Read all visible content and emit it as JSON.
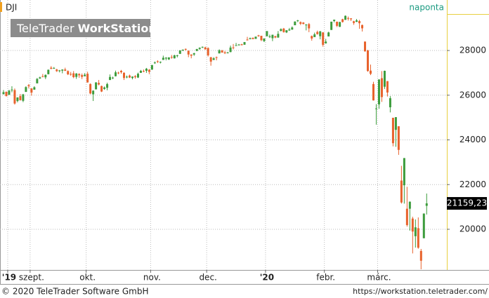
{
  "chart_data": {
    "type": "candlestick",
    "symbol": "DJI",
    "interval": "naponta",
    "watermark": {
      "light": "TeleTrader",
      "bold": "WorkStation"
    },
    "footer_left": "© 2020 TeleTrader Software GmbH",
    "footer_right": "https://workstation.teletrader.com/",
    "up_color": "#3c9c3c",
    "down_color": "#e8622c",
    "grid": true,
    "ylim": [
      18180,
      30260
    ],
    "yticks": [
      20000,
      22000,
      24000,
      26000,
      28000
    ],
    "xlim": [
      -1.25,
      158.2
    ],
    "xticks": [
      {
        "value": 2,
        "label": "'19"
      },
      {
        "value": 10,
        "label": "szept."
      },
      {
        "value": 30,
        "label": "okt."
      },
      {
        "value": 53,
        "label": "nov."
      },
      {
        "value": 73,
        "label": "dec."
      },
      {
        "value": 94,
        "label": "'20"
      },
      {
        "value": 115,
        "label": "febr."
      },
      {
        "value": 134,
        "label": "márc."
      }
    ],
    "last_price": {
      "value": 21159.23,
      "label": "21159,23"
    },
    "candles": [
      [
        26050,
        26230,
        26030,
        26136
      ],
      [
        26150,
        26170,
        25940,
        25962
      ],
      [
        26020,
        26240,
        26010,
        26202
      ],
      [
        26230,
        26400,
        26130,
        26252
      ],
      [
        26230,
        26300,
        25580,
        25628
      ],
      [
        25740,
        25910,
        25680,
        25898
      ],
      [
        25960,
        26050,
        25760,
        25777
      ],
      [
        25750,
        26060,
        25690,
        26036
      ],
      [
        26150,
        26400,
        26140,
        26362
      ],
      [
        26450,
        26500,
        26300,
        26403
      ],
      [
        26300,
        26320,
        25980,
        26118
      ],
      [
        26250,
        26400,
        26240,
        26355
      ],
      [
        26530,
        26770,
        26530,
        26728
      ],
      [
        26750,
        26830,
        26730,
        26797
      ],
      [
        26850,
        26950,
        26800,
        26835
      ],
      [
        26800,
        26930,
        26720,
        26909
      ],
      [
        26940,
        27150,
        26930,
        27137
      ],
      [
        27230,
        27300,
        27160,
        27182
      ],
      [
        27200,
        27260,
        27180,
        27220
      ],
      [
        27150,
        27180,
        27040,
        27076
      ],
      [
        27090,
        27130,
        27020,
        27111
      ],
      [
        27100,
        27160,
        26980,
        27147
      ],
      [
        27150,
        27230,
        27080,
        27094
      ],
      [
        27080,
        27110,
        26900,
        26935
      ],
      [
        26950,
        27040,
        26870,
        26949
      ],
      [
        26980,
        27080,
        26760,
        26808
      ],
      [
        26820,
        26990,
        26730,
        26970
      ],
      [
        26950,
        26980,
        26780,
        26891
      ],
      [
        26900,
        26970,
        26720,
        26820
      ],
      [
        26850,
        26990,
        26840,
        26917
      ],
      [
        26960,
        27050,
        26560,
        26573
      ],
      [
        26500,
        26530,
        26040,
        26078
      ],
      [
        26040,
        26220,
        25740,
        26201
      ],
      [
        26260,
        26580,
        26260,
        26573
      ],
      [
        26550,
        26680,
        26440,
        26478
      ],
      [
        26410,
        26430,
        26140,
        26164
      ],
      [
        26280,
        26390,
        26240,
        26346
      ],
      [
        26330,
        26560,
        26220,
        26497
      ],
      [
        26680,
        26930,
        26680,
        26816
      ],
      [
        26760,
        26830,
        26720,
        26787
      ],
      [
        26850,
        27100,
        26840,
        27024
      ],
      [
        27010,
        27050,
        26940,
        27001
      ],
      [
        27090,
        27130,
        26960,
        27026
      ],
      [
        27000,
        27030,
        26680,
        26770
      ],
      [
        26800,
        26880,
        26760,
        26827
      ],
      [
        26880,
        26920,
        26770,
        26788
      ],
      [
        26770,
        26840,
        26710,
        26834
      ],
      [
        26850,
        26900,
        26740,
        26806
      ],
      [
        26790,
        27010,
        26770,
        26958
      ],
      [
        27000,
        27130,
        27000,
        27091
      ],
      [
        27080,
        27150,
        27030,
        27071
      ],
      [
        27090,
        27220,
        27000,
        27186
      ],
      [
        27140,
        27170,
        26940,
        27046
      ],
      [
        27150,
        27360,
        27130,
        27347
      ],
      [
        27450,
        27510,
        27400,
        27462
      ],
      [
        27520,
        27560,
        27440,
        27492
      ],
      [
        27460,
        27510,
        27420,
        27492
      ],
      [
        27580,
        27770,
        27580,
        27675
      ],
      [
        27640,
        27700,
        27560,
        27681
      ],
      [
        27600,
        27700,
        27580,
        27691
      ],
      [
        27710,
        27800,
        27630,
        27691
      ],
      [
        27650,
        27810,
        27640,
        27784
      ],
      [
        27760,
        27810,
        27690,
        27782
      ],
      [
        27850,
        28010,
        27850,
        28005
      ],
      [
        28010,
        28050,
        27970,
        28036
      ],
      [
        28070,
        28090,
        27990,
        28036
      ],
      [
        27990,
        28000,
        27700,
        27821
      ],
      [
        27820,
        27830,
        27650,
        27767
      ],
      [
        27820,
        27900,
        27760,
        27876
      ],
      [
        27980,
        28070,
        27970,
        28066
      ],
      [
        28070,
        28140,
        28030,
        28122
      ],
      [
        28140,
        28180,
        28110,
        28164
      ],
      [
        28140,
        28170,
        28040,
        28051
      ],
      [
        28110,
        28140,
        27730,
        27783
      ],
      [
        27700,
        27710,
        27320,
        27503
      ],
      [
        27580,
        27700,
        27570,
        27650
      ],
      [
        27700,
        27730,
        27560,
        27677
      ],
      [
        27870,
        28050,
        27870,
        28015
      ],
      [
        28000,
        28030,
        27900,
        27910
      ],
      [
        27920,
        27980,
        27840,
        27881
      ],
      [
        27890,
        27940,
        27870,
        27911
      ],
      [
        27930,
        28220,
        27920,
        28132
      ],
      [
        28140,
        28290,
        28050,
        28135
      ],
      [
        28230,
        28340,
        28220,
        28235
      ],
      [
        28250,
        28290,
        28220,
        28267
      ],
      [
        28280,
        28300,
        28230,
        28239
      ],
      [
        28260,
        28380,
        28250,
        28377
      ],
      [
        28490,
        28610,
        28450,
        28455
      ],
      [
        28510,
        28580,
        28500,
        28551
      ],
      [
        28570,
        28580,
        28500,
        28515
      ],
      [
        28520,
        28620,
        28520,
        28621
      ],
      [
        28680,
        28700,
        28610,
        28645
      ],
      [
        28660,
        28660,
        28420,
        28462
      ],
      [
        28420,
        28540,
        28380,
        28538
      ],
      [
        28640,
        28870,
        28630,
        28868
      ],
      [
        28630,
        28710,
        28560,
        28634
      ],
      [
        28550,
        28710,
        28420,
        28703
      ],
      [
        28640,
        28660,
        28550,
        28583
      ],
      [
        28580,
        28870,
        28570,
        28745
      ],
      [
        28880,
        28990,
        28850,
        28957
      ],
      [
        28980,
        29010,
        28800,
        28824
      ],
      [
        28810,
        28910,
        28780,
        28907
      ],
      [
        28900,
        29010,
        28880,
        28940
      ],
      [
        28940,
        29080,
        28920,
        29030
      ],
      [
        29130,
        29300,
        29130,
        29297
      ],
      [
        29320,
        29370,
        29270,
        29348
      ],
      [
        29270,
        29300,
        29140,
        29196
      ],
      [
        29250,
        29270,
        29170,
        29186
      ],
      [
        29160,
        29180,
        28900,
        29160
      ],
      [
        29180,
        29230,
        28820,
        28990
      ],
      [
        28650,
        28670,
        28440,
        28536
      ],
      [
        28600,
        28800,
        28600,
        28723
      ],
      [
        28830,
        28890,
        28710,
        28734
      ],
      [
        28640,
        28870,
        28500,
        28860
      ],
      [
        28810,
        28820,
        28170,
        28256
      ],
      [
        28320,
        28520,
        28310,
        28400
      ],
      [
        28630,
        28840,
        28630,
        28808
      ],
      [
        28920,
        29290,
        28920,
        29290
      ],
      [
        29320,
        29380,
        29260,
        29380
      ],
      [
        29290,
        29290,
        29050,
        29103
      ],
      [
        29060,
        29280,
        29050,
        29276
      ],
      [
        29400,
        29420,
        29250,
        29276
      ],
      [
        29370,
        29570,
        29370,
        29551
      ],
      [
        29450,
        29520,
        29340,
        29424
      ],
      [
        29440,
        29440,
        29320,
        29398
      ],
      [
        29310,
        29330,
        29150,
        29232
      ],
      [
        29280,
        29410,
        29280,
        29348
      ],
      [
        29320,
        29370,
        28970,
        29220
      ],
      [
        29140,
        29160,
        28850,
        28992
      ],
      [
        28400,
        28400,
        27950,
        27961
      ],
      [
        28000,
        28030,
        27050,
        27081
      ],
      [
        27100,
        27370,
        26900,
        26957
      ],
      [
        26500,
        26600,
        25760,
        25767
      ],
      [
        25400,
        25600,
        24680,
        25409
      ],
      [
        25590,
        26710,
        25390,
        26703
      ],
      [
        26760,
        27080,
        25700,
        25917
      ],
      [
        26380,
        27100,
        26280,
        27091
      ],
      [
        26630,
        26630,
        25940,
        26121
      ],
      [
        25460,
        25960,
        25230,
        25865
      ],
      [
        24990,
        24990,
        23710,
        23851
      ],
      [
        24450,
        25020,
        23690,
        25018
      ],
      [
        24610,
        24610,
        23330,
        23553
      ],
      [
        22180,
        22840,
        21150,
        21200
      ],
      [
        21970,
        23190,
        21150,
        23186
      ],
      [
        20920,
        21900,
        20120,
        20189
      ],
      [
        20920,
        21240,
        19940,
        21237
      ],
      [
        20480,
        20560,
        18920,
        19899
      ],
      [
        19690,
        20440,
        19180,
        20087
      ],
      [
        20050,
        20530,
        19130,
        19174
      ],
      [
        19030,
        19120,
        18210,
        18592
      ],
      [
        19600,
        20710,
        19600,
        20704
      ],
      [
        21050,
        21600,
        20660,
        21159.23
      ]
    ]
  }
}
